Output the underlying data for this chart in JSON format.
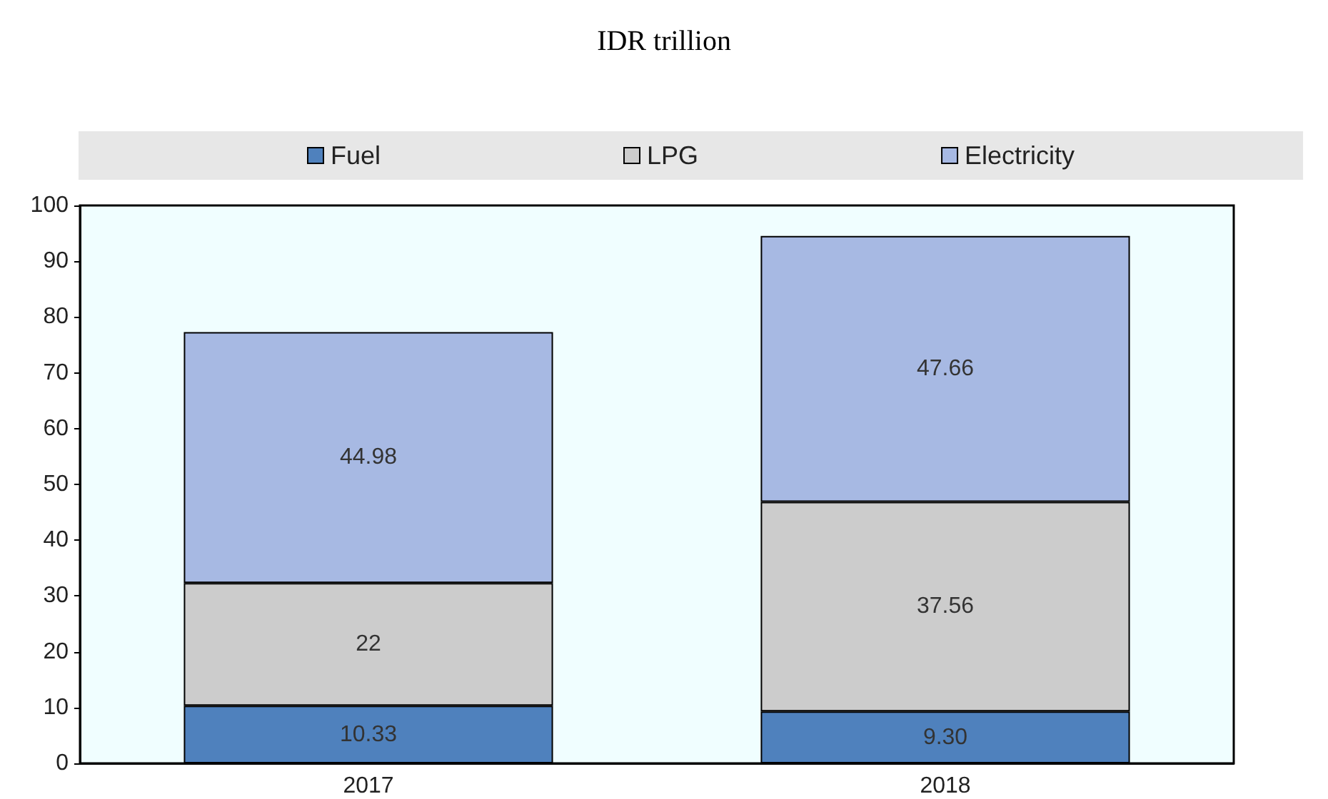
{
  "chart_data": {
    "type": "bar",
    "title": "IDR trillion",
    "categories": [
      "2017",
      "2018"
    ],
    "stacked": true,
    "legend": "top",
    "grid": false,
    "ylim": [
      0,
      100
    ],
    "yticks": [
      0,
      10,
      20,
      30,
      40,
      50,
      60,
      70,
      80,
      90,
      100
    ],
    "series": [
      {
        "name": "Fuel",
        "color": "#4f81bd",
        "values": [
          10.33,
          9.3
        ],
        "value_labels": [
          "10.33",
          "9.30"
        ]
      },
      {
        "name": "LPG",
        "color": "#cccccc",
        "values": [
          22,
          37.56
        ],
        "value_labels": [
          "22",
          "37.56"
        ]
      },
      {
        "name": "Electricity",
        "color": "#a7b9e3",
        "values": [
          44.98,
          47.66
        ],
        "value_labels": [
          "44.98",
          "47.66"
        ]
      }
    ]
  }
}
